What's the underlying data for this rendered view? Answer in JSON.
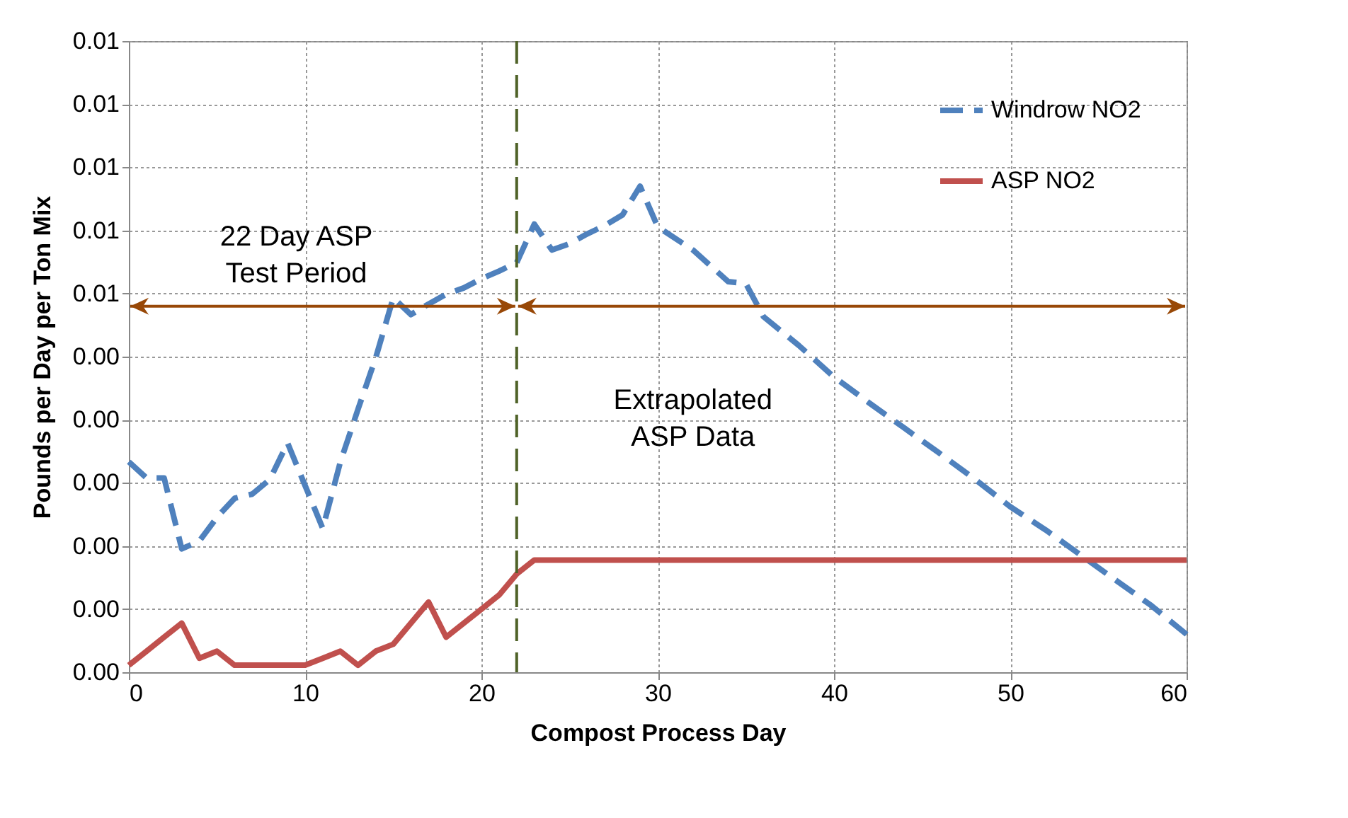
{
  "chart_data": {
    "type": "line",
    "xlabel": "Compost Process Day",
    "ylabel": "Pounds per Day per Ton Mix",
    "xlim": [
      0,
      60
    ],
    "xticks": [
      0,
      10,
      20,
      30,
      40,
      50,
      60
    ],
    "ylim": [
      0,
      0.009
    ],
    "yticks": [
      {
        "value": 0,
        "label": "0.00"
      },
      {
        "value": 0.0009,
        "label": "0.00"
      },
      {
        "value": 0.0018,
        "label": "0.00"
      },
      {
        "value": 0.0027,
        "label": "0.00"
      },
      {
        "value": 0.0036,
        "label": "0.00"
      },
      {
        "value": 0.0045,
        "label": "0.00"
      },
      {
        "value": 0.0054,
        "label": "0.01"
      },
      {
        "value": 0.0063,
        "label": "0.01"
      },
      {
        "value": 0.0072,
        "label": "0.01"
      },
      {
        "value": 0.0081,
        "label": "0.01"
      },
      {
        "value": 0.009,
        "label": "0.01"
      }
    ],
    "grid": true,
    "legend": "top right",
    "marker": "none",
    "series": [
      {
        "name": "Windrow NO2",
        "color": "#4f81bd",
        "line_style": "dashed",
        "x": [
          0,
          1,
          2,
          3,
          4,
          5,
          6,
          7,
          8,
          9,
          10,
          11,
          12,
          13,
          14,
          15,
          16,
          17,
          18,
          19,
          20,
          21,
          22,
          23,
          24,
          25,
          26,
          27,
          28,
          29,
          30,
          32,
          34,
          35,
          36,
          38,
          40,
          42,
          44,
          46,
          48,
          50,
          52,
          54,
          56,
          58,
          60
        ],
        "values": [
          0.003,
          0.00277,
          0.00277,
          0.00176,
          0.00187,
          0.00221,
          0.00248,
          0.00254,
          0.00275,
          0.00327,
          0.00266,
          0.00205,
          0.003,
          0.00375,
          0.00448,
          0.00534,
          0.0051,
          0.00525,
          0.00539,
          0.00548,
          0.00561,
          0.00572,
          0.00584,
          0.00639,
          0.00602,
          0.00611,
          0.00625,
          0.00637,
          0.00652,
          0.00693,
          0.00635,
          0.00602,
          0.00557,
          0.00554,
          0.00507,
          0.00466,
          0.00421,
          0.00384,
          0.00348,
          0.00312,
          0.00275,
          0.00236,
          0.00203,
          0.00167,
          0.00131,
          0.00095,
          0.00054
        ]
      },
      {
        "name": "ASP NO2",
        "color": "#c0504d",
        "line_style": "solid",
        "x": [
          0,
          1,
          2,
          3,
          4,
          5,
          6,
          7,
          8,
          9,
          10,
          11,
          12,
          13,
          14,
          15,
          16,
          17,
          18,
          19,
          20,
          21,
          22,
          23,
          60
        ],
        "values": [
          0.0001,
          0.0003,
          0.0005,
          0.0007,
          0.0002,
          0.0003,
          0.0001,
          0.0001,
          0.0001,
          0.0001,
          0.0001,
          0.0002,
          0.0003,
          0.0001,
          0.0003,
          0.0004,
          0.0007,
          0.001,
          0.0005,
          0.0007,
          0.0009,
          0.0011,
          0.0014,
          0.0016,
          0.0016
        ]
      }
    ],
    "ref_lines": [
      {
        "axis": "x",
        "value": 22,
        "color": "#4f6228",
        "line_style": "dashed"
      }
    ],
    "annotations": [
      "22 Day ASP Test Period",
      "Extrapolated ASP Data"
    ]
  }
}
